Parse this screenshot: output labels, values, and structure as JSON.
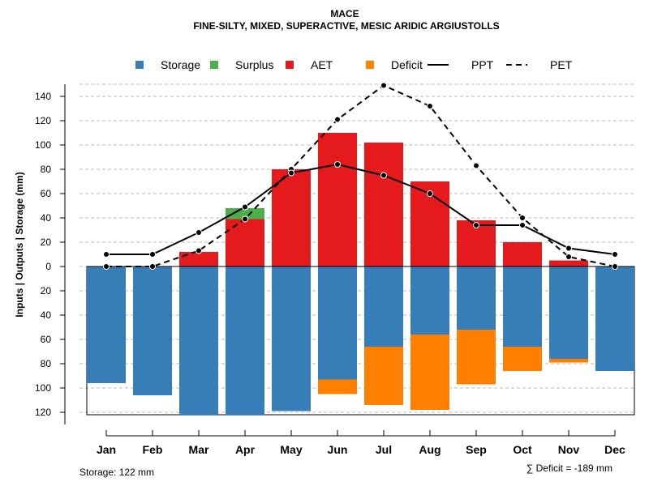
{
  "chart_data": {
    "type": "bar",
    "title": "MACE",
    "subtitle": "FINE-SILTY, MIXED, SUPERACTIVE, MESIC ARIDIC ARGIUSTOLLS",
    "ylabel": "Inputs | Outputs | Storage    (mm)",
    "categories": [
      "Jan",
      "Feb",
      "Mar",
      "Apr",
      "May",
      "Jun",
      "Jul",
      "Aug",
      "Sep",
      "Oct",
      "Nov",
      "Dec"
    ],
    "ylim": [
      -122,
      150
    ],
    "y_ticks": [
      140,
      120,
      100,
      80,
      60,
      40,
      20,
      0,
      -20,
      -40,
      -60,
      -80,
      -100,
      -120
    ],
    "y_tick_labels": [
      "140",
      "120",
      "100",
      "80",
      "60",
      "40",
      "20",
      "0",
      "20",
      "40",
      "60",
      "80",
      "100",
      "120"
    ],
    "series": [
      {
        "name": "Storage",
        "color": "#377EB8",
        "values": [
          96,
          106,
          122,
          122,
          119,
          93,
          66,
          56,
          52,
          66,
          76,
          86
        ]
      },
      {
        "name": "Surplus",
        "color": "#4DAF4A",
        "values": [
          0,
          0,
          0,
          9,
          0,
          0,
          0,
          0,
          0,
          0,
          0,
          0
        ]
      },
      {
        "name": "AET",
        "color": "#E41A1C",
        "values": [
          0,
          0,
          12,
          39,
          80,
          110,
          102,
          70,
          38,
          20,
          5,
          0
        ]
      },
      {
        "name": "Deficit",
        "color": "#FF7F00",
        "values": [
          0,
          0,
          0,
          0,
          0,
          12,
          48,
          62,
          45,
          20,
          3,
          0
        ]
      },
      {
        "name": "PPT",
        "color": "#000000",
        "values": [
          10,
          10,
          28,
          49,
          77,
          84,
          75,
          60,
          34,
          34,
          15,
          10
        ]
      },
      {
        "name": "PET",
        "color": "#000000",
        "values": [
          0,
          0,
          13,
          39,
          80,
          121,
          149,
          132,
          83,
          40,
          8,
          0
        ]
      }
    ],
    "legend": [
      {
        "label": "Storage",
        "kind": "box",
        "color": "#377EB8"
      },
      {
        "label": "Surplus",
        "kind": "box",
        "color": "#4DAF4A"
      },
      {
        "label": "AET",
        "kind": "box",
        "color": "#E41A1C"
      },
      {
        "label": "Deficit",
        "kind": "box",
        "color": "#FF7F00"
      },
      {
        "label": "PPT",
        "kind": "solid-line",
        "color": "#000000"
      },
      {
        "label": "PET",
        "kind": "dashed-line",
        "color": "#000000"
      }
    ],
    "legend_position": "top",
    "grid": true,
    "storage_note": "Storage: 122 mm",
    "deficit_note": "∑ Deficit = -189 mm"
  }
}
